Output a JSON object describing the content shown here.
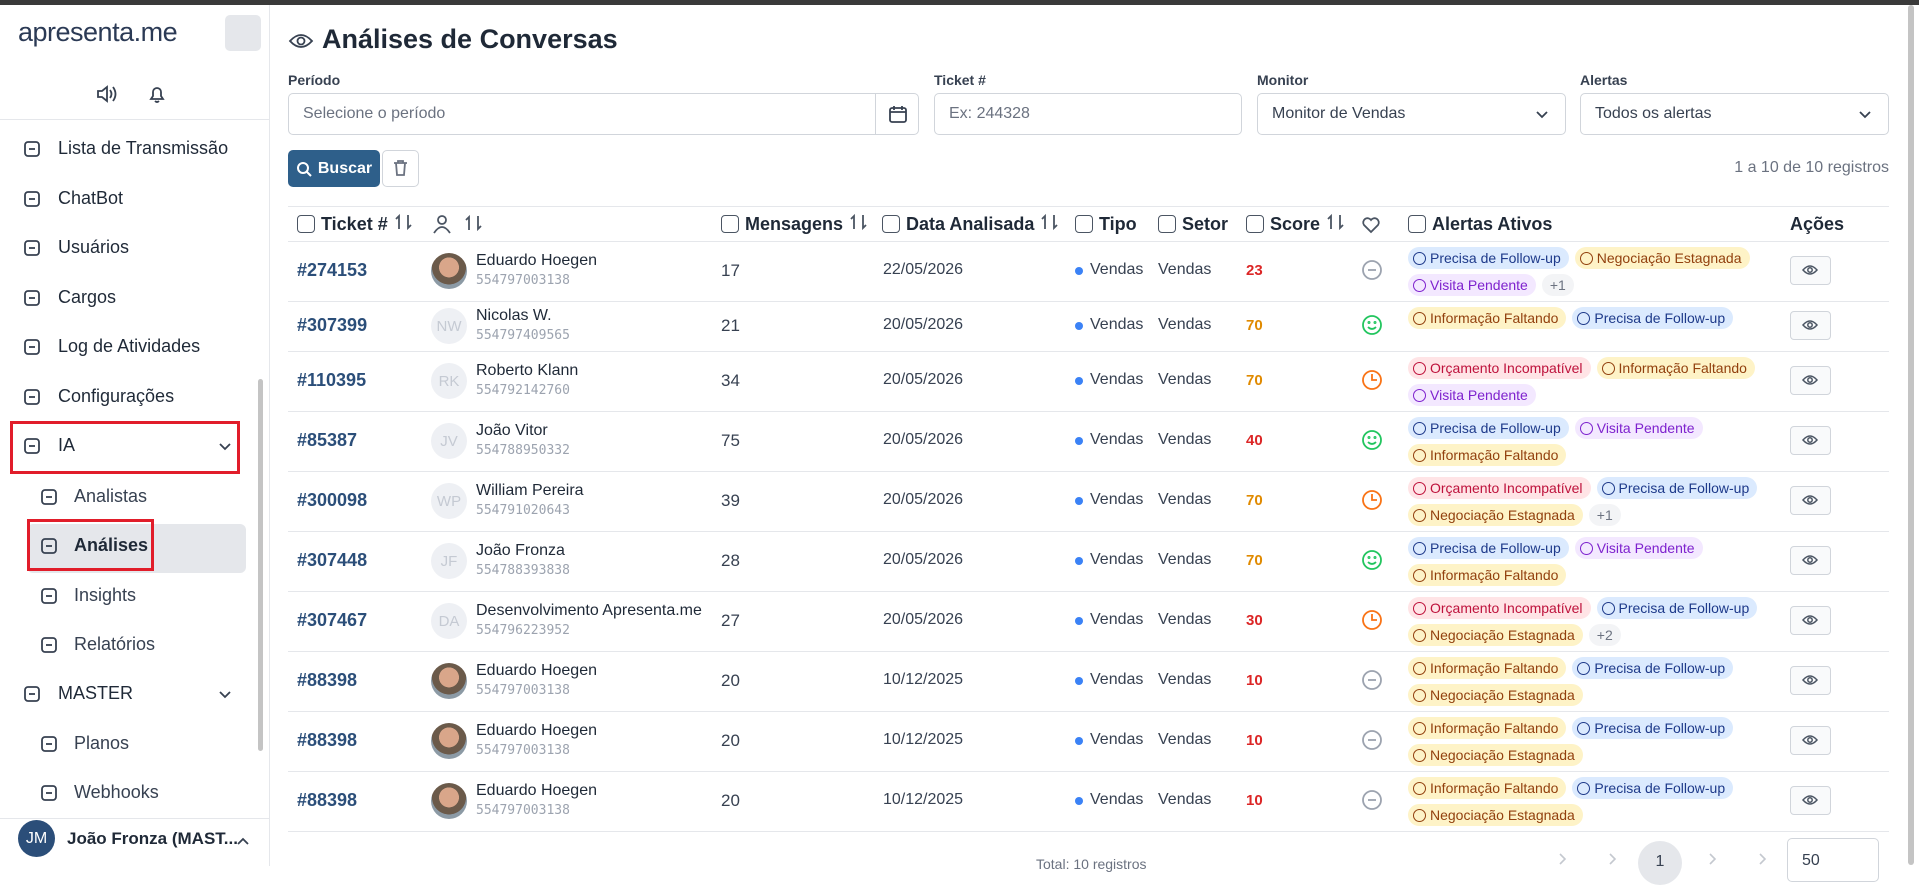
{
  "sidebar": {
    "logo": "apresenta.me",
    "menu": [
      "Lista de Transmissão",
      "ChatBot",
      "Usuários",
      "Cargos",
      "Log de Atividades",
      "Configurações",
      "IA"
    ],
    "ia_submenu": [
      "Analistas",
      "Análises",
      "Insights",
      "Relatórios"
    ],
    "master": "MASTER",
    "master_submenu": [
      "Planos",
      "Webhooks"
    ],
    "user": {
      "initials": "JM",
      "name": "João Fronza (MAST..."
    }
  },
  "header": {
    "title": "Análises de Conversas"
  },
  "filters": [
    {
      "label": "Período",
      "placeholder": "Selecione o período"
    },
    {
      "label": "Ticket #",
      "placeholder": "Ex: 244328"
    },
    {
      "label": "Monitor",
      "value": "Monitor de Vendas"
    },
    {
      "label": "Alertas",
      "value": "Todos os alertas"
    }
  ],
  "search_button": "Buscar",
  "records_info": "1 a 10 de 10 registros",
  "alert_colors": {
    "Precisa de Follow-up": [
      "#dbeafe",
      "#1e3a8a"
    ],
    "Negociação Estagnada": [
      "#fef3c7",
      "#92400e"
    ],
    "Visita Pendente": [
      "#f3e8ff",
      "#7e22ce"
    ],
    "Informação Faltando": [
      "#fef3c7",
      "#92400e"
    ],
    "Orçamento Incompatível": [
      "#ffe4e6",
      "#be123c"
    ]
  },
  "table": {
    "columns": [
      "Ticket #",
      "Mensagens",
      "Data Analisada",
      "Tipo",
      "Setor",
      "Score",
      "Alertas Ativos",
      "Ações"
    ],
    "rows": [
      {
        "ticket": "#274153",
        "name": "Eduardo Hoegen",
        "phone": "554797003138",
        "initials": null,
        "messages": 17,
        "date": "22/05/2026",
        "type": "Vendas",
        "sector": "Vendas",
        "score": 23,
        "mood": "neutral",
        "alerts": [
          "Precisa de Follow-up",
          "Negociação Estagnada",
          "Visita Pendente"
        ],
        "more": "+1"
      },
      {
        "ticket": "#307399",
        "name": "Nicolas W.",
        "phone": "554797409565",
        "initials": "NW",
        "messages": 21,
        "date": "20/05/2026",
        "type": "Vendas",
        "sector": "Vendas",
        "score": 70,
        "mood": "happy",
        "alerts": [
          "Informação Faltando",
          "Precisa de Follow-up"
        ],
        "more": null
      },
      {
        "ticket": "#110395",
        "name": "Roberto Klann",
        "phone": "554792142760",
        "initials": "RK",
        "messages": 34,
        "date": "20/05/2026",
        "type": "Vendas",
        "sector": "Vendas",
        "score": 70,
        "mood": "clock",
        "alerts": [
          "Orçamento Incompatível",
          "Informação Faltando",
          "Visita Pendente"
        ],
        "more": null
      },
      {
        "ticket": "#85387",
        "name": "João Vitor",
        "phone": "554788950332",
        "initials": "JV",
        "messages": 75,
        "date": "20/05/2026",
        "type": "Vendas",
        "sector": "Vendas",
        "score": 40,
        "mood": "happy",
        "alerts": [
          "Precisa de Follow-up",
          "Visita Pendente",
          "Informação Faltando"
        ],
        "more": null
      },
      {
        "ticket": "#300098",
        "name": "William Pereira",
        "phone": "554791020643",
        "initials": "WP",
        "messages": 39,
        "date": "20/05/2026",
        "type": "Vendas",
        "sector": "Vendas",
        "score": 70,
        "mood": "clock",
        "alerts": [
          "Orçamento Incompatível",
          "Precisa de Follow-up",
          "Negociação Estagnada"
        ],
        "more": "+1"
      },
      {
        "ticket": "#307448",
        "name": "João Fronza",
        "phone": "554788393838",
        "initials": "JF",
        "messages": 28,
        "date": "20/05/2026",
        "type": "Vendas",
        "sector": "Vendas",
        "score": 70,
        "mood": "happy",
        "alerts": [
          "Precisa de Follow-up",
          "Visita Pendente",
          "Informação Faltando"
        ],
        "more": null
      },
      {
        "ticket": "#307467",
        "name": "Desenvolvimento Apresenta.me",
        "phone": "554796223952",
        "initials": "DA",
        "messages": 27,
        "date": "20/05/2026",
        "type": "Vendas",
        "sector": "Vendas",
        "score": 30,
        "mood": "clock",
        "alerts": [
          "Orçamento Incompatível",
          "Precisa de Follow-up",
          "Negociação Estagnada"
        ],
        "more": "+2"
      },
      {
        "ticket": "#88398",
        "name": "Eduardo Hoegen",
        "phone": "554797003138",
        "initials": null,
        "messages": 20,
        "date": "10/12/2025",
        "type": "Vendas",
        "sector": "Vendas",
        "score": 10,
        "mood": "neutral",
        "alerts": [
          "Informação Faltando",
          "Precisa de Follow-up",
          "Negociação Estagnada"
        ],
        "more": null
      },
      {
        "ticket": "#88398",
        "name": "Eduardo Hoegen",
        "phone": "554797003138",
        "initials": null,
        "messages": 20,
        "date": "10/12/2025",
        "type": "Vendas",
        "sector": "Vendas",
        "score": 10,
        "mood": "neutral",
        "alerts": [
          "Informação Faltando",
          "Precisa de Follow-up",
          "Negociação Estagnada"
        ],
        "more": null
      },
      {
        "ticket": "#88398",
        "name": "Eduardo Hoegen",
        "phone": "554797003138",
        "initials": null,
        "messages": 20,
        "date": "10/12/2025",
        "type": "Vendas",
        "sector": "Vendas",
        "score": 10,
        "mood": "neutral",
        "alerts": [
          "Informação Faltando",
          "Precisa de Follow-up",
          "Negociação Estagnada"
        ],
        "more": null
      }
    ]
  },
  "footer": {
    "total": "Total: 10 registros",
    "page": "1",
    "page_size": "50"
  }
}
